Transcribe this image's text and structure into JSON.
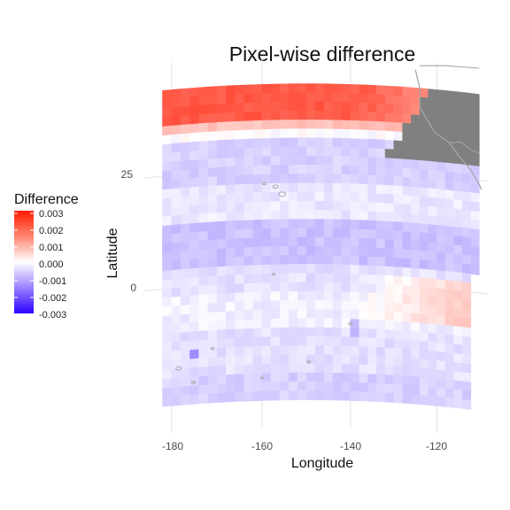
{
  "chart_data": {
    "type": "heatmap",
    "title": "Pixel-wise difference",
    "xlabel": "Longitude",
    "ylabel": "Latitude",
    "x_ticks": [
      -180,
      -160,
      -140,
      -120
    ],
    "y_ticks": [
      25,
      0
    ],
    "xlim": [
      -185,
      -109
    ],
    "ylim": [
      -27,
      47
    ],
    "grid": true,
    "legend": {
      "title": "Difference",
      "placement": "left",
      "breaks": [
        "0.003",
        "0.002",
        "0.001",
        "0.000",
        "-0.001",
        "-0.002",
        "-0.003"
      ],
      "limits": [
        -0.0033,
        0.0033
      ]
    },
    "colors": {
      "low": "#2b00ff",
      "mid": "#ffffff",
      "high": "#ff1a00",
      "land": "#808080",
      "gridline": "#e6e6e6",
      "coastline": "#a6a6a6"
    },
    "bands": [
      {
        "lat_range": [
          44,
          36.5
        ],
        "value": 0.0024
      },
      {
        "lat_range": [
          36.5,
          33.5
        ],
        "value": 0.0009
      },
      {
        "lat_range": [
          33.5,
          32
        ],
        "value": 0.0
      },
      {
        "lat_range": [
          32,
          21
        ],
        "value": -0.0006
      },
      {
        "lat_range": [
          21,
          14
        ],
        "value": -0.0003
      },
      {
        "lat_range": [
          14,
          4
        ],
        "value": -0.0008
      },
      {
        "lat_range": [
          4,
          -3
        ],
        "value": -0.0004
      },
      {
        "lat_range": [
          -3,
          -10
        ],
        "value": -0.0002
      },
      {
        "lat_range": [
          -10,
          -20
        ],
        "value": -0.0004
      },
      {
        "lat_range": [
          -20,
          -26
        ],
        "value": -0.0006
      }
    ],
    "east_pacific_anomaly": {
      "value": 0.0008,
      "lon_range": [
        -140,
        -112
      ],
      "lat_range": [
        2,
        -8
      ]
    },
    "hotspots": [
      {
        "lon": -174.5,
        "lat": -14.5,
        "value": -0.0015
      },
      {
        "lon": -139,
        "lat": -10,
        "value": -0.001
      }
    ]
  }
}
